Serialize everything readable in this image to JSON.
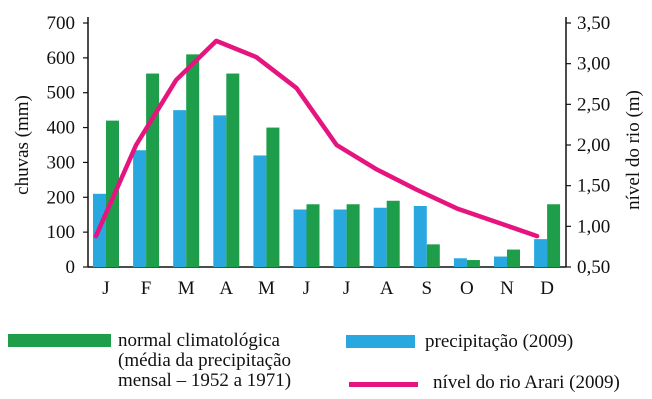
{
  "chart_data": {
    "type": "bar",
    "categories": [
      "J",
      "F",
      "M",
      "A",
      "M",
      "J",
      "J",
      "A",
      "S",
      "O",
      "N",
      "D"
    ],
    "ylabel_left": "chuvas (mm)",
    "ylabel_right": "nível do rio (m)",
    "left_ticks": [
      "0",
      "100",
      "200",
      "300",
      "400",
      "500",
      "600",
      "700"
    ],
    "right_ticks": [
      "0,50",
      "1,00",
      "1,50",
      "2,00",
      "2,50",
      "3,00",
      "3,50"
    ],
    "ylim_left": [
      0,
      700
    ],
    "ylim_right": [
      0.5,
      3.5
    ],
    "grid": false,
    "series": [
      {
        "name": "precipitação (2009)",
        "kind": "bar",
        "axis": "left",
        "color": "#29a8e0",
        "values": [
          210,
          335,
          450,
          435,
          320,
          165,
          165,
          170,
          175,
          25,
          30,
          80
        ]
      },
      {
        "name": "normal climatológica",
        "kind": "bar",
        "axis": "left",
        "color": "#1e9e4a",
        "values": [
          420,
          555,
          610,
          555,
          400,
          180,
          180,
          190,
          65,
          20,
          50,
          180
        ]
      },
      {
        "name": "nível do rio Arari (2009)",
        "kind": "line",
        "axis": "right",
        "color": "#e5147f",
        "values": [
          0.88,
          2.0,
          2.8,
          3.28,
          3.08,
          2.7,
          2.0,
          1.7,
          1.45,
          1.22,
          1.05,
          0.88
        ]
      }
    ]
  },
  "legend": {
    "normal_line1": "normal climatológica",
    "normal_line2": "(média da precipitação",
    "normal_line3": "mensal – 1952 a 1971)",
    "precip": "precipitação (2009)",
    "river": "nível do rio Arari (2009)"
  }
}
